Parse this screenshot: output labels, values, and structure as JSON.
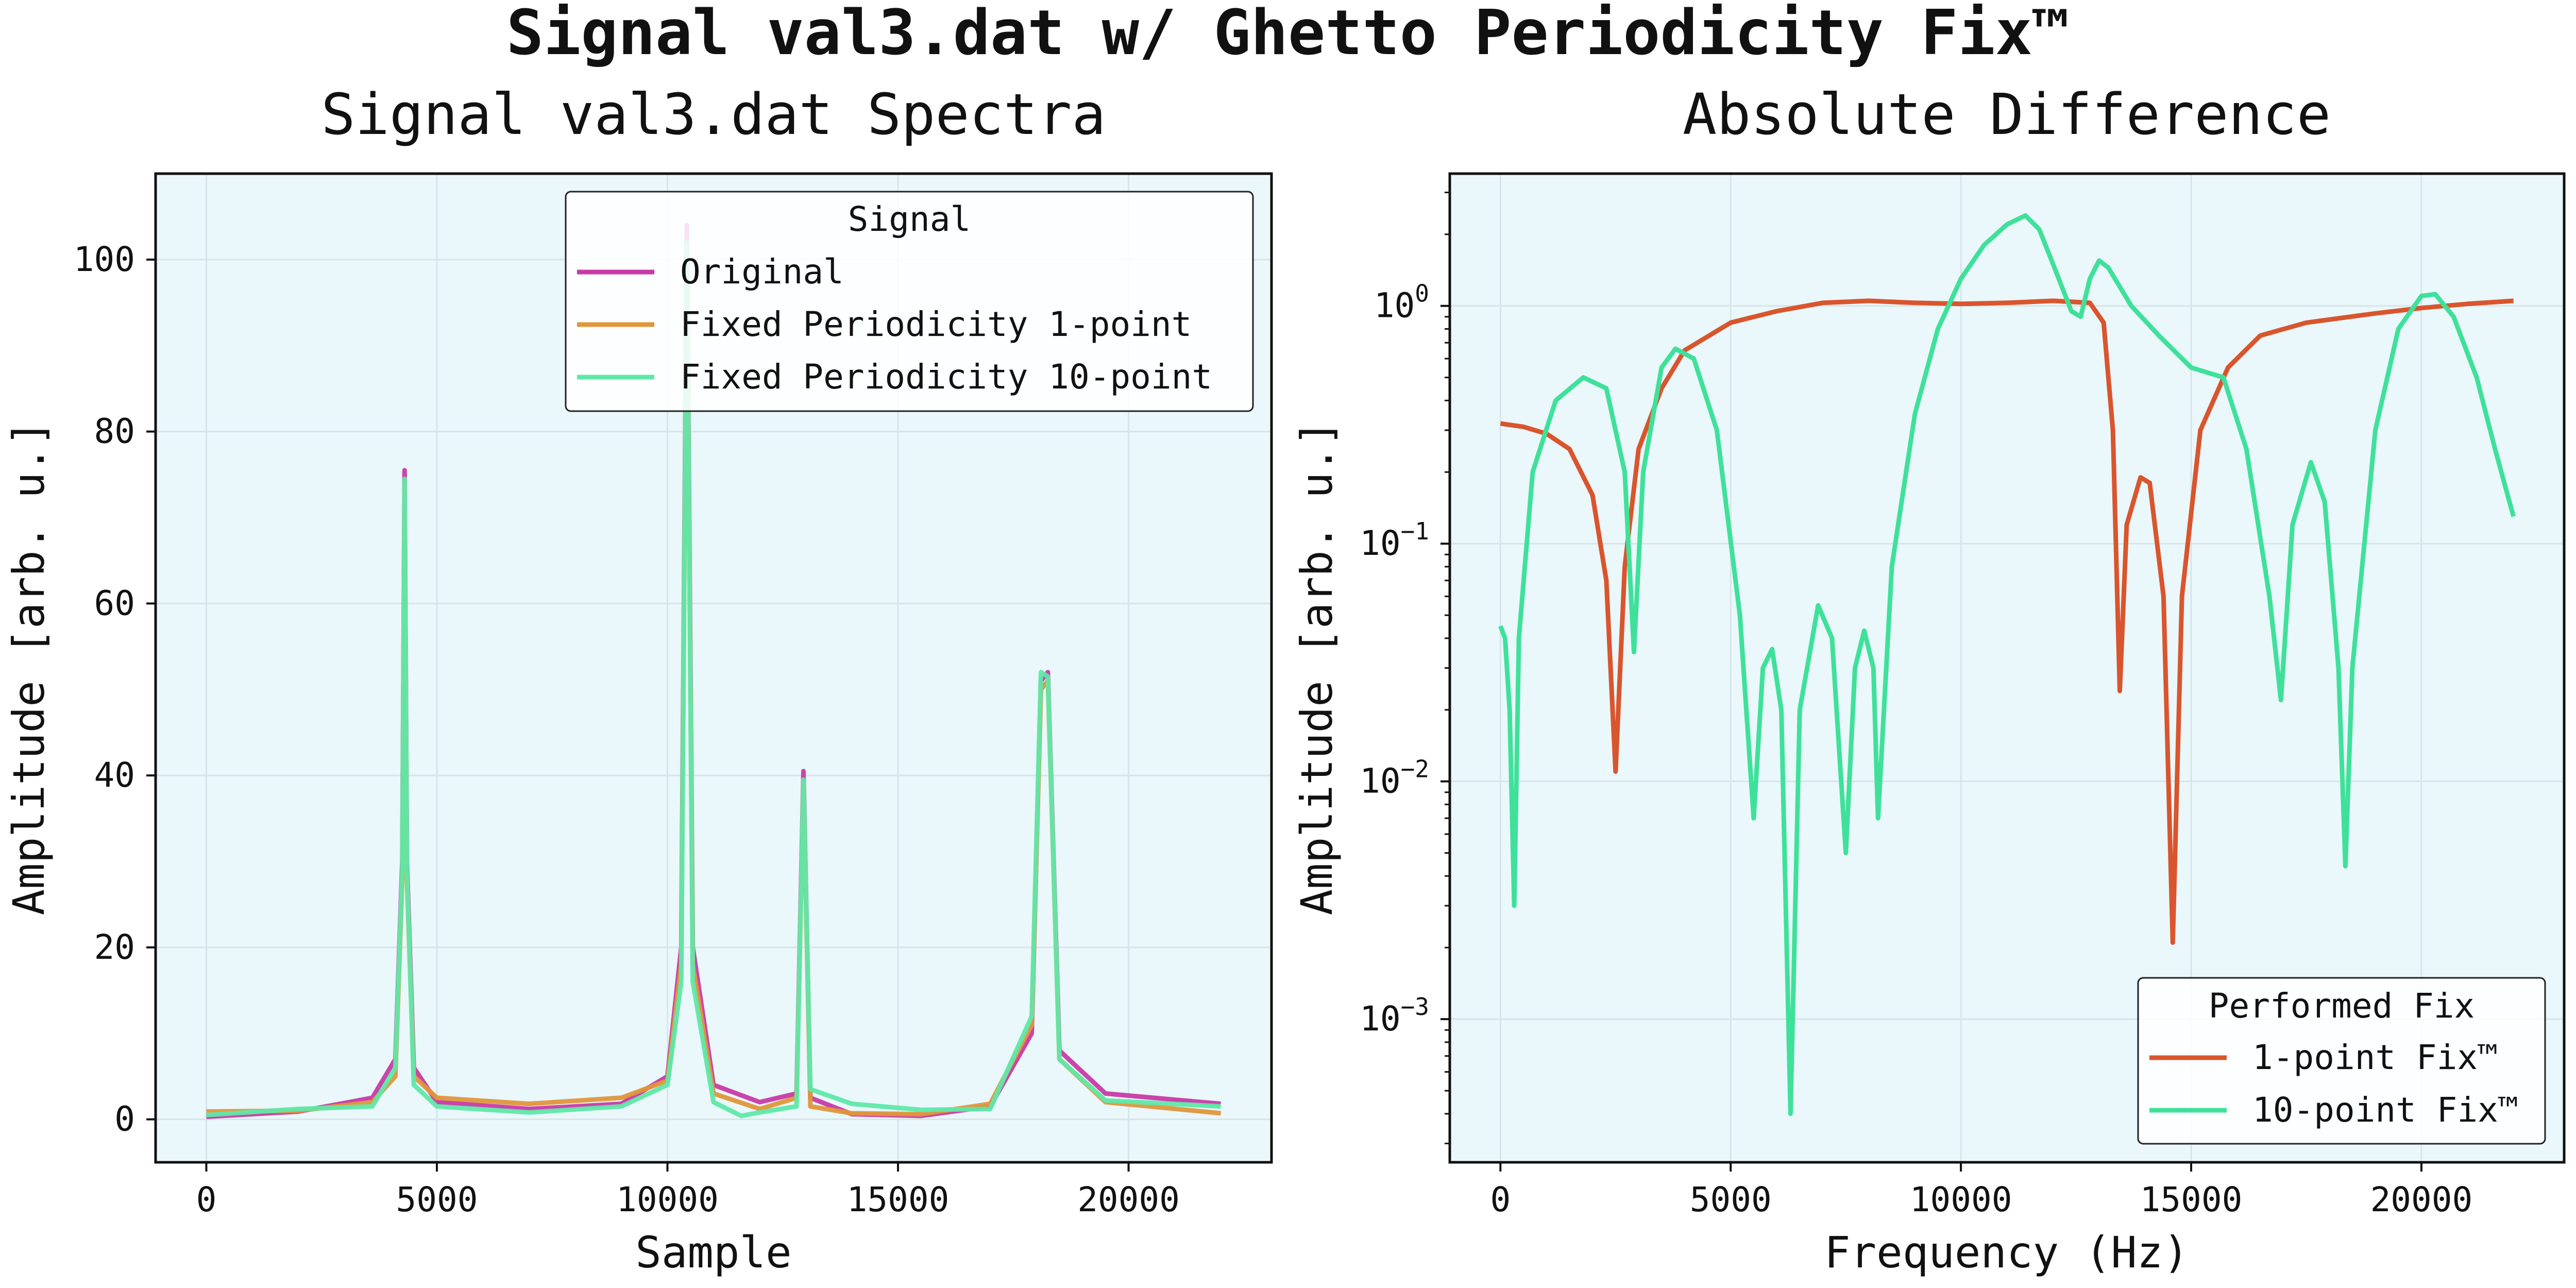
{
  "figure": {
    "suptitle": "Signal val3.dat w/ Ghetto Periodicity Fix™"
  },
  "colors": {
    "axes_bg": "#eaf7fb",
    "grid": "#d6e5ea",
    "original": "#c83aa6",
    "fixed_1pt_left": "#e0963a",
    "fixed_10pt_left": "#5fe8a8",
    "fix_1pt_right": "#d9552d",
    "fix_10pt_right": "#3fe19a"
  },
  "chart_data": [
    {
      "type": "line",
      "title": "Signal val3.dat Spectra",
      "xlabel": "Sample",
      "ylabel": "Amplitude [arb. u.]",
      "xlim": [
        -1100,
        23100
      ],
      "ylim": [
        -5,
        110
      ],
      "xticks": [
        0,
        5000,
        10000,
        15000,
        20000
      ],
      "yticks": [
        0,
        20,
        40,
        60,
        80,
        100
      ],
      "grid": true,
      "legend": {
        "title": "Signal",
        "position": "top-right"
      },
      "series": [
        {
          "name": "Original",
          "points": [
            [
              0,
              0.3
            ],
            [
              2000,
              0.9
            ],
            [
              3600,
              2.5
            ],
            [
              4100,
              7
            ],
            [
              4250,
              30
            ],
            [
              4300,
              75.5
            ],
            [
              4350,
              30
            ],
            [
              4500,
              6
            ],
            [
              5000,
              2
            ],
            [
              7000,
              1.2
            ],
            [
              9000,
              1.8
            ],
            [
              10000,
              5
            ],
            [
              10300,
              20
            ],
            [
              10420,
              104
            ],
            [
              10550,
              20
            ],
            [
              11000,
              4
            ],
            [
              12000,
              2
            ],
            [
              12800,
              3
            ],
            [
              12950,
              40.5
            ],
            [
              13100,
              2.5
            ],
            [
              14000,
              0.6
            ],
            [
              15500,
              0.4
            ],
            [
              17000,
              1.5
            ],
            [
              17900,
              10
            ],
            [
              18100,
              51
            ],
            [
              18250,
              52
            ],
            [
              18500,
              8
            ],
            [
              19500,
              3
            ],
            [
              22000,
              1.8
            ]
          ]
        },
        {
          "name": "Fixed Periodicity 1-point",
          "points": [
            [
              0,
              0.9
            ],
            [
              2000,
              1.0
            ],
            [
              3600,
              2.0
            ],
            [
              4100,
              5
            ],
            [
              4250,
              28
            ],
            [
              4300,
              74
            ],
            [
              4350,
              28
            ],
            [
              4500,
              5
            ],
            [
              5000,
              2.5
            ],
            [
              7000,
              1.8
            ],
            [
              9000,
              2.5
            ],
            [
              10000,
              4.5
            ],
            [
              10300,
              18
            ],
            [
              10420,
              101
            ],
            [
              10550,
              18
            ],
            [
              11000,
              3
            ],
            [
              12000,
              1.2
            ],
            [
              12800,
              2.5
            ],
            [
              12950,
              39
            ],
            [
              13100,
              1.5
            ],
            [
              14000,
              0.7
            ],
            [
              15500,
              0.6
            ],
            [
              17000,
              1.8
            ],
            [
              17900,
              11
            ],
            [
              18100,
              50
            ],
            [
              18250,
              51
            ],
            [
              18500,
              7
            ],
            [
              19500,
              2
            ],
            [
              22000,
              0.7
            ]
          ]
        },
        {
          "name": "Fixed Periodicity 10-point",
          "points": [
            [
              0,
              0.5
            ],
            [
              2000,
              1.2
            ],
            [
              3600,
              1.5
            ],
            [
              4100,
              6
            ],
            [
              4250,
              29
            ],
            [
              4300,
              74.5
            ],
            [
              4350,
              29
            ],
            [
              4500,
              4
            ],
            [
              5000,
              1.5
            ],
            [
              7000,
              0.8
            ],
            [
              9000,
              1.5
            ],
            [
              10000,
              4
            ],
            [
              10300,
              16
            ],
            [
              10420,
              102
            ],
            [
              10550,
              16
            ],
            [
              11000,
              2
            ],
            [
              11600,
              0.4
            ],
            [
              12000,
              0.8
            ],
            [
              12800,
              1.5
            ],
            [
              12950,
              39.5
            ],
            [
              13100,
              3.5
            ],
            [
              14000,
              1.8
            ],
            [
              15500,
              1.1
            ],
            [
              17000,
              1.2
            ],
            [
              17900,
              12
            ],
            [
              18100,
              52
            ],
            [
              18250,
              51.5
            ],
            [
              18500,
              7
            ],
            [
              19500,
              2.2
            ],
            [
              22000,
              1.5
            ]
          ]
        }
      ]
    },
    {
      "type": "line",
      "title": "Absolute Difference",
      "xlabel": "Frequency (Hz)",
      "ylabel": "Amplitude [arb. u.]",
      "yscale": "log",
      "xlim": [
        -1100,
        23100
      ],
      "ylim": [
        0.00025,
        3.6
      ],
      "xticks": [
        0,
        5000,
        10000,
        15000,
        20000
      ],
      "yticks": [
        0.001,
        0.01,
        0.1,
        1
      ],
      "ytick_labels": [
        {
          "base": "10",
          "exp": "−3"
        },
        {
          "base": "10",
          "exp": "−2"
        },
        {
          "base": "10",
          "exp": "−1"
        },
        {
          "base": "10",
          "exp": "0"
        }
      ],
      "grid": true,
      "legend": {
        "title": "Performed Fix",
        "position": "bottom-right"
      },
      "series": [
        {
          "name": "1-point Fix™",
          "points": [
            [
              0,
              0.32
            ],
            [
              500,
              0.31
            ],
            [
              1000,
              0.29
            ],
            [
              1500,
              0.25
            ],
            [
              2000,
              0.16
            ],
            [
              2300,
              0.07
            ],
            [
              2500,
              0.011
            ],
            [
              2700,
              0.08
            ],
            [
              3000,
              0.25
            ],
            [
              3500,
              0.45
            ],
            [
              4000,
              0.65
            ],
            [
              5000,
              0.85
            ],
            [
              6000,
              0.95
            ],
            [
              7000,
              1.03
            ],
            [
              8000,
              1.05
            ],
            [
              9000,
              1.03
            ],
            [
              10000,
              1.02
            ],
            [
              11000,
              1.03
            ],
            [
              12000,
              1.05
            ],
            [
              12800,
              1.03
            ],
            [
              13100,
              0.85
            ],
            [
              13300,
              0.3
            ],
            [
              13450,
              0.024
            ],
            [
              13600,
              0.12
            ],
            [
              13900,
              0.19
            ],
            [
              14100,
              0.18
            ],
            [
              14400,
              0.06
            ],
            [
              14600,
              0.0021
            ],
            [
              14800,
              0.06
            ],
            [
              15200,
              0.3
            ],
            [
              15800,
              0.55
            ],
            [
              16500,
              0.75
            ],
            [
              17500,
              0.85
            ],
            [
              19000,
              0.93
            ],
            [
              20000,
              0.98
            ],
            [
              21000,
              1.02
            ],
            [
              22000,
              1.05
            ]
          ]
        },
        {
          "name": "10-point Fix™",
          "points": [
            [
              0,
              0.045
            ],
            [
              100,
              0.04
            ],
            [
              200,
              0.02
            ],
            [
              300,
              0.003
            ],
            [
              400,
              0.04
            ],
            [
              700,
              0.2
            ],
            [
              1200,
              0.4
            ],
            [
              1800,
              0.5
            ],
            [
              2300,
              0.45
            ],
            [
              2700,
              0.2
            ],
            [
              2900,
              0.035
            ],
            [
              3100,
              0.2
            ],
            [
              3500,
              0.55
            ],
            [
              3800,
              0.66
            ],
            [
              4200,
              0.6
            ],
            [
              4700,
              0.3
            ],
            [
              5200,
              0.05
            ],
            [
              5500,
              0.007
            ],
            [
              5700,
              0.03
            ],
            [
              5900,
              0.036
            ],
            [
              6100,
              0.02
            ],
            [
              6300,
              0.0004
            ],
            [
              6500,
              0.02
            ],
            [
              6900,
              0.055
            ],
            [
              7200,
              0.04
            ],
            [
              7500,
              0.005
            ],
            [
              7700,
              0.03
            ],
            [
              7900,
              0.043
            ],
            [
              8100,
              0.03
            ],
            [
              8200,
              0.007
            ],
            [
              8500,
              0.08
            ],
            [
              9000,
              0.35
            ],
            [
              9500,
              0.8
            ],
            [
              10000,
              1.3
            ],
            [
              10500,
              1.8
            ],
            [
              11000,
              2.2
            ],
            [
              11400,
              2.4
            ],
            [
              11700,
              2.1
            ],
            [
              12000,
              1.5
            ],
            [
              12400,
              0.95
            ],
            [
              12600,
              0.9
            ],
            [
              12800,
              1.3
            ],
            [
              13000,
              1.55
            ],
            [
              13200,
              1.45
            ],
            [
              13700,
              1.0
            ],
            [
              14300,
              0.75
            ],
            [
              15000,
              0.55
            ],
            [
              15700,
              0.5
            ],
            [
              16200,
              0.25
            ],
            [
              16700,
              0.06
            ],
            [
              16950,
              0.022
            ],
            [
              17200,
              0.12
            ],
            [
              17600,
              0.22
            ],
            [
              17900,
              0.15
            ],
            [
              18200,
              0.03
            ],
            [
              18350,
              0.0044
            ],
            [
              18500,
              0.03
            ],
            [
              19000,
              0.3
            ],
            [
              19500,
              0.8
            ],
            [
              20000,
              1.1
            ],
            [
              20300,
              1.12
            ],
            [
              20700,
              0.9
            ],
            [
              21200,
              0.5
            ],
            [
              21600,
              0.25
            ],
            [
              22000,
              0.13
            ]
          ]
        }
      ]
    }
  ]
}
